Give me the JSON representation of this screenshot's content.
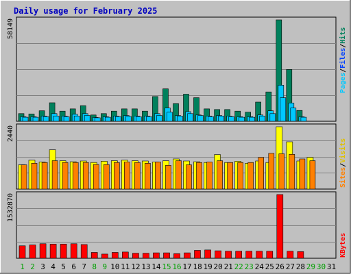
{
  "title": "Daily usage for February 2025",
  "colors": {
    "background": "#c0c0c0",
    "plot": "#c0c0c0",
    "grid": "#808080",
    "hits": "#00805c",
    "files": "#00c8ff",
    "pages": "#00c8ff",
    "visits": "#ffff00",
    "sites": "#ff8000",
    "kbytes": "#ff0000",
    "title": "#0000c0",
    "weekend": "#00a000"
  },
  "legend": {
    "top": {
      "pages": "Pages",
      "files": "Files",
      "hits": "Hits",
      "sep": "/"
    },
    "middle": {
      "sites": "Sites",
      "visits": "Visits",
      "sep": "/"
    },
    "bottom": {
      "kbytes": "KBytes"
    }
  },
  "chart_data": [
    {
      "type": "bar",
      "panel": "hits-files-pages",
      "ymax_label": "58149",
      "ylim": [
        0,
        58149
      ],
      "categories": [
        "1",
        "2",
        "3",
        "4",
        "5",
        "6",
        "7",
        "8",
        "9",
        "10",
        "11",
        "12",
        "13",
        "14",
        "15",
        "16",
        "17",
        "18",
        "19",
        "20",
        "21",
        "22",
        "23",
        "24",
        "25",
        "26",
        "27",
        "28",
        "29",
        "30",
        "31"
      ],
      "series": [
        {
          "name": "Hits",
          "values": [
            4400,
            4200,
            6000,
            10600,
            5800,
            7100,
            8900,
            3600,
            4400,
            5800,
            7100,
            7100,
            5800,
            14200,
            18600,
            10100,
            15500,
            13500,
            7100,
            6700,
            6700,
            5800,
            5200,
            11000,
            16800,
            58149,
            29700,
            6200,
            0,
            0,
            0
          ]
        },
        {
          "name": "Files",
          "values": [
            2600,
            2600,
            3000,
            4400,
            3000,
            4000,
            4400,
            2200,
            2600,
            3000,
            3300,
            3000,
            3000,
            4400,
            7600,
            3300,
            5500,
            3600,
            3000,
            3300,
            3000,
            2600,
            2600,
            3600,
            6000,
            20700,
            10500,
            2600,
            0,
            0,
            0
          ]
        },
        {
          "name": "Pages",
          "values": [
            2300,
            2300,
            2600,
            3000,
            2600,
            3000,
            3300,
            2000,
            2300,
            2600,
            2800,
            2600,
            2600,
            3300,
            5200,
            3000,
            4400,
            3300,
            2600,
            3000,
            2600,
            2300,
            2300,
            3000,
            4400,
            13500,
            7600,
            2300,
            0,
            0,
            0
          ]
        }
      ],
      "xlabel": "",
      "ylabel": ""
    },
    {
      "type": "bar",
      "panel": "visits-sites",
      "ymax_label": "2440",
      "ylim": [
        0,
        2440
      ],
      "categories": [
        "1",
        "2",
        "3",
        "4",
        "5",
        "6",
        "7",
        "8",
        "9",
        "10",
        "11",
        "12",
        "13",
        "14",
        "15",
        "16",
        "17",
        "18",
        "19",
        "20",
        "21",
        "22",
        "23",
        "24",
        "25",
        "26",
        "27",
        "28",
        "29",
        "30",
        "31"
      ],
      "series": [
        {
          "name": "Visits",
          "values": [
            950,
            1130,
            1060,
            1540,
            1110,
            1070,
            1100,
            1040,
            1090,
            1110,
            1130,
            1110,
            1100,
            1060,
            1110,
            1180,
            1100,
            1070,
            1040,
            1350,
            1040,
            1090,
            1010,
            1100,
            1040,
            2440,
            1850,
            1100,
            1240,
            0,
            0
          ]
        },
        {
          "name": "Sites",
          "values": [
            950,
            1010,
            1040,
            1110,
            1040,
            1040,
            1040,
            960,
            960,
            1040,
            1060,
            1040,
            1010,
            1060,
            930,
            1110,
            950,
            1040,
            1060,
            1110,
            1040,
            1040,
            1040,
            1240,
            1400,
            1380,
            1360,
            1180,
            1110,
            0,
            0
          ]
        }
      ],
      "xlabel": "",
      "ylabel": ""
    },
    {
      "type": "bar",
      "panel": "kbytes",
      "ymax_label": "1532870",
      "ylim": [
        0,
        1532870
      ],
      "categories": [
        "1",
        "2",
        "3",
        "4",
        "5",
        "6",
        "7",
        "8",
        "9",
        "10",
        "11",
        "12",
        "13",
        "14",
        "15",
        "16",
        "17",
        "18",
        "19",
        "20",
        "21",
        "22",
        "23",
        "24",
        "25",
        "26",
        "27",
        "28",
        "29",
        "30",
        "31"
      ],
      "series": [
        {
          "name": "KBytes",
          "values": [
            300000,
            320000,
            350000,
            340000,
            340000,
            350000,
            330000,
            140000,
            100000,
            140000,
            150000,
            120000,
            120000,
            130000,
            130000,
            110000,
            130000,
            190000,
            200000,
            180000,
            170000,
            170000,
            170000,
            170000,
            170000,
            1532870,
            170000,
            160000,
            0,
            0,
            0
          ]
        }
      ],
      "xlabel": "",
      "ylabel": ""
    }
  ],
  "x_axis": {
    "days": [
      "1",
      "2",
      "3",
      "4",
      "5",
      "6",
      "7",
      "8",
      "9",
      "10",
      "11",
      "12",
      "13",
      "14",
      "15",
      "16",
      "17",
      "18",
      "19",
      "20",
      "21",
      "22",
      "23",
      "24",
      "25",
      "26",
      "27",
      "28",
      "29",
      "30",
      "31"
    ],
    "weekend_days": [
      "1",
      "2",
      "8",
      "9",
      "15",
      "16",
      "22",
      "23",
      "29",
      "30"
    ],
    "tail_label": "31"
  }
}
